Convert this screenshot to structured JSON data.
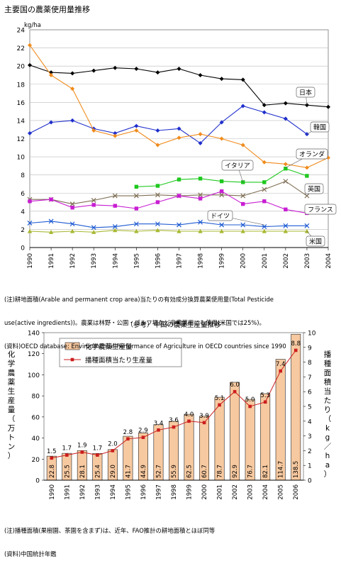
{
  "page_title": "主要国の農薬使用量推移",
  "note1": {
    "line1": "(注)耕地面積(Arable and permanent crop area)当たりの有効成分換算農薬使用量(Total Pesticide",
    "line2": "use(active ingredients))。農薬は林野・公園・ゴルフ場など非農業用にも使用(米国では25%)。",
    "line3": "(資料)OECD database: Environmental Performance of Agriculture in OECD countries since 1990"
  },
  "note2": {
    "line1": "(注)播種面積(果樹園、茶園を含まず)は、近年、FAO推計の耕地面積とほぼ同等",
    "line2": "(資料)中国統計年鑑"
  },
  "chart_data": [
    {
      "type": "line",
      "ylabel": "kg/ha",
      "ylim": [
        0,
        24
      ],
      "yticks": [
        0,
        2,
        4,
        6,
        8,
        10,
        12,
        14,
        16,
        18,
        20,
        22,
        24
      ],
      "categories": [
        "1990",
        "1991",
        "1992",
        "1993",
        "1994",
        "1995",
        "1996",
        "1997",
        "1998",
        "1999",
        "2000",
        "2001",
        "2002",
        "2003",
        "2004"
      ],
      "grid": true,
      "series": [
        {
          "name": "日本",
          "color": "#000000",
          "marker": "diamond",
          "values": [
            20.1,
            19.3,
            19.2,
            19.5,
            19.8,
            19.7,
            19.3,
            19.7,
            19.0,
            18.6,
            18.5,
            15.7,
            15.9,
            15.7,
            15.5
          ]
        },
        {
          "name": "韓国",
          "color": "#1f2fcc",
          "marker": "diamond",
          "values": [
            12.6,
            13.8,
            14.0,
            13.1,
            12.6,
            13.4,
            12.9,
            13.1,
            11.5,
            13.8,
            15.6,
            14.9,
            14.2,
            12.5,
            null
          ]
        },
        {
          "name": "オランダ",
          "color": "#f08c1e",
          "marker": "diamond",
          "values": [
            22.3,
            19.0,
            17.5,
            12.9,
            12.3,
            12.9,
            11.3,
            12.1,
            12.5,
            12.0,
            11.3,
            9.4,
            9.2,
            8.8,
            9.9
          ]
        },
        {
          "name": "イタリア",
          "color": "#1ec81e",
          "marker": "square",
          "values": [
            null,
            null,
            null,
            null,
            null,
            6.7,
            6.8,
            7.5,
            7.6,
            7.3,
            7.2,
            7.2,
            8.7,
            7.9,
            null
          ]
        },
        {
          "name": "英国",
          "color": "#7f6f55",
          "marker": "x",
          "values": [
            5.3,
            5.3,
            4.8,
            5.2,
            5.7,
            5.7,
            5.8,
            5.7,
            5.8,
            5.8,
            5.7,
            6.4,
            7.3,
            5.7,
            null
          ]
        },
        {
          "name": "フランス",
          "color": "#c81ed2",
          "marker": "square",
          "values": [
            5.1,
            5.3,
            4.4,
            4.7,
            4.6,
            4.3,
            5.0,
            5.7,
            5.4,
            6.2,
            4.8,
            5.1,
            4.2,
            3.8,
            null
          ]
        },
        {
          "name": "ドイツ",
          "color": "#1e5ad2",
          "marker": "x",
          "values": [
            2.7,
            2.9,
            2.6,
            2.2,
            2.3,
            2.6,
            2.6,
            2.5,
            2.8,
            2.5,
            2.5,
            2.3,
            2.4,
            2.4,
            null
          ]
        },
        {
          "name": "米国",
          "color": "#a8b832",
          "marker": "triangle",
          "values": [
            1.8,
            1.7,
            1.8,
            1.7,
            1.9,
            1.8,
            1.9,
            1.8,
            1.8,
            1.8,
            1.8,
            1.8,
            1.8,
            1.8,
            null
          ]
        }
      ]
    },
    {
      "type": "bar",
      "title": "（参考）中国の農薬生産量推移",
      "ylabel_left": "化学農薬生産量（万トン）",
      "ylabel_right": "播種面積当たり（kg／ha）",
      "ylim_left": [
        0,
        140
      ],
      "yticks_left": [
        0,
        20,
        40,
        60,
        80,
        100,
        120,
        140
      ],
      "ylim_right": [
        0,
        10
      ],
      "yticks_right": [
        0,
        1,
        2,
        3,
        4,
        5,
        6,
        7,
        8,
        9,
        10
      ],
      "categories": [
        "1990",
        "1991",
        "1992",
        "1993",
        "1994",
        "1995",
        "1996",
        "1997",
        "1998",
        "1999",
        "2000",
        "2001",
        "2002",
        "2003",
        "2004",
        "2005",
        "2006"
      ],
      "series": [
        {
          "name": "化学農薬生産量",
          "type": "bar",
          "axis": "left",
          "color": "#f7c9a0",
          "labels": [
            "22.8",
            "25.5",
            "28.1",
            "25.4",
            "29.0",
            "41.7",
            "44.9",
            "52.7",
            "55.9",
            "62.5",
            "60.7",
            "78.7",
            "92.9",
            "76.7",
            "82.1",
            "114.7",
            "138.5"
          ],
          "values": [
            22.8,
            25.5,
            28.1,
            25.4,
            29.0,
            41.7,
            44.9,
            52.7,
            55.9,
            62.5,
            60.7,
            78.7,
            92.9,
            76.7,
            82.1,
            114.7,
            138.5
          ]
        },
        {
          "name": "播種面積当たり生産量",
          "type": "line",
          "axis": "right",
          "color": "#cc1e1e",
          "labels": [
            "1.5",
            "1.7",
            "1.9",
            "1.7",
            "2.0",
            "2.8",
            "2.9",
            "3.4",
            "3.6",
            "4.0",
            "3.9",
            "5.1",
            "6.0",
            "5.0",
            "5.3",
            "7.4",
            "8.8"
          ],
          "values": [
            1.5,
            1.7,
            1.9,
            1.7,
            2.0,
            2.8,
            2.9,
            3.4,
            3.6,
            4.0,
            3.9,
            5.1,
            6.0,
            5.0,
            5.3,
            7.4,
            8.8
          ]
        }
      ]
    }
  ]
}
